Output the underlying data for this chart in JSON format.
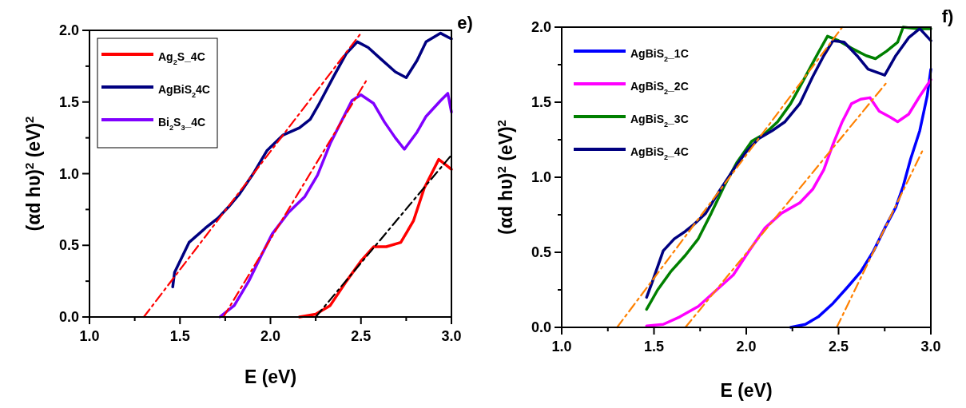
{
  "chart_data": [
    {
      "type": "line",
      "title": "e)",
      "xlabel": "E (eV)",
      "ylabel": "(αd hυ)$^{2}$ (eV)$^{2}$",
      "legend": "top left",
      "grid": false,
      "marker": "none",
      "xlim": [
        1,
        3
      ],
      "ylim": [
        0,
        2
      ],
      "xticks": [
        {
          "value": 1,
          "label": "1.0"
        },
        {
          "value": 1.25,
          "label": null
        },
        {
          "value": 1.5,
          "label": "1.5"
        },
        {
          "value": 1.75,
          "label": null
        },
        {
          "value": 2,
          "label": "2.0"
        },
        {
          "value": 2.25,
          "label": null
        },
        {
          "value": 2.5,
          "label": "2.5"
        },
        {
          "value": 2.75,
          "label": null
        },
        {
          "value": 3,
          "label": "3.0"
        }
      ],
      "yticks": [
        {
          "value": 0,
          "label": "0.0"
        },
        {
          "value": 0.25,
          "label": null
        },
        {
          "value": 0.5,
          "label": "0.5"
        },
        {
          "value": 0.75,
          "label": null
        },
        {
          "value": 1,
          "label": "1.0"
        },
        {
          "value": 1.25,
          "label": null
        },
        {
          "value": 1.5,
          "label": "1.5"
        },
        {
          "value": 1.75,
          "label": null
        },
        {
          "value": 2,
          "label": "2.0"
        }
      ],
      "series": [
        {
          "name": "Ag$_{2}$S_4C",
          "color": "#ff0000",
          "x": [
            2.16,
            2.25,
            2.33,
            2.42,
            2.5,
            2.57,
            2.64,
            2.72,
            2.79,
            2.85,
            2.93,
            2.97,
            3.0
          ],
          "values": [
            0,
            0.02,
            0.08,
            0.25,
            0.39,
            0.49,
            0.49,
            0.52,
            0.67,
            0.9,
            1.1,
            1.06,
            1.03
          ]
        },
        {
          "name": "AgBiS$_{2}$4C",
          "color": "#000080",
          "x": [
            1.46,
            1.47,
            1.55,
            1.64,
            1.71,
            1.77,
            1.83,
            1.91,
            1.98,
            2.07,
            2.16,
            2.22,
            2.27,
            2.35,
            2.42,
            2.48,
            2.54,
            2.61,
            2.69,
            2.75,
            2.81,
            2.86,
            2.94,
            3.0
          ],
          "values": [
            0.21,
            0.31,
            0.52,
            0.62,
            0.69,
            0.77,
            0.86,
            1.01,
            1.16,
            1.27,
            1.32,
            1.38,
            1.49,
            1.68,
            1.84,
            1.92,
            1.88,
            1.8,
            1.71,
            1.67,
            1.79,
            1.92,
            1.98,
            1.94
          ]
        },
        {
          "name": "Bi$_{2}$S$_{3}$_4C",
          "color": "#8000ff",
          "x": [
            1.72,
            1.8,
            1.88,
            1.95,
            2.01,
            2.1,
            2.19,
            2.26,
            2.33,
            2.39,
            2.45,
            2.5,
            2.57,
            2.63,
            2.69,
            2.74,
            2.81,
            2.86,
            2.94,
            2.98,
            3.0
          ],
          "values": [
            0,
            0.08,
            0.25,
            0.43,
            0.58,
            0.73,
            0.84,
            0.99,
            1.21,
            1.36,
            1.51,
            1.55,
            1.49,
            1.36,
            1.25,
            1.17,
            1.29,
            1.4,
            1.51,
            1.56,
            1.43
          ]
        },
        {
          "color": "#ff0000",
          "line_style": "dashed",
          "x": [
            1.3,
            2.5
          ],
          "values": [
            0,
            1.98
          ]
        },
        {
          "color": "#ff0000",
          "line_style": "dashed",
          "x": [
            1.74,
            2.53
          ],
          "values": [
            0,
            1.65
          ]
        },
        {
          "color": "#000000",
          "line_style": "dashed",
          "x": [
            2.25,
            3.0
          ],
          "values": [
            0,
            1.13
          ]
        }
      ]
    },
    {
      "type": "line",
      "title": "f)",
      "xlabel": "E (eV)",
      "ylabel": "(αd hυ)$^{2}$ (eV)$^{2}$",
      "legend": "top left",
      "grid": false,
      "marker": "none",
      "xlim": [
        1,
        3
      ],
      "ylim": [
        0,
        2
      ],
      "xticks": [
        {
          "value": 1,
          "label": "1.0"
        },
        {
          "value": 1.25,
          "label": null
        },
        {
          "value": 1.5,
          "label": "1.5"
        },
        {
          "value": 1.75,
          "label": null
        },
        {
          "value": 2,
          "label": "2.0"
        },
        {
          "value": 2.25,
          "label": null
        },
        {
          "value": 2.5,
          "label": "2.5"
        },
        {
          "value": 2.75,
          "label": null
        },
        {
          "value": 3,
          "label": "3.0"
        }
      ],
      "yticks": [
        {
          "value": 0,
          "label": "0.0"
        },
        {
          "value": 0.25,
          "label": null
        },
        {
          "value": 0.5,
          "label": "0.5"
        },
        {
          "value": 0.75,
          "label": null
        },
        {
          "value": 1,
          "label": "1.0"
        },
        {
          "value": 1.25,
          "label": null
        },
        {
          "value": 1.5,
          "label": "1.5"
        },
        {
          "value": 1.75,
          "label": null
        },
        {
          "value": 2,
          "label": "2.0"
        }
      ],
      "series": [
        {
          "name": "AgBiS$_{2}$_1C",
          "color": "#0000ff",
          "x": [
            2.24,
            2.32,
            2.39,
            2.47,
            2.55,
            2.62,
            2.69,
            2.75,
            2.81,
            2.85,
            2.89,
            2.94,
            2.98,
            3.0
          ],
          "values": [
            0,
            0.02,
            0.07,
            0.16,
            0.27,
            0.37,
            0.51,
            0.66,
            0.8,
            0.94,
            1.12,
            1.31,
            1.54,
            1.72
          ]
        },
        {
          "name": "AgBiS$_{2}$_2C",
          "color": "#ff00ff",
          "x": [
            1.46,
            1.55,
            1.64,
            1.74,
            1.84,
            1.93,
            2.01,
            2.1,
            2.19,
            2.29,
            2.36,
            2.42,
            2.47,
            2.52,
            2.57,
            2.62,
            2.67,
            2.72,
            2.78,
            2.82,
            2.88,
            2.94,
            3.0
          ],
          "values": [
            0.01,
            0.02,
            0.07,
            0.14,
            0.25,
            0.35,
            0.5,
            0.66,
            0.76,
            0.83,
            0.92,
            1.05,
            1.22,
            1.37,
            1.49,
            1.52,
            1.53,
            1.44,
            1.4,
            1.37,
            1.42,
            1.54,
            1.65
          ]
        },
        {
          "name": "AgBiS$_{2}$_3C",
          "color": "#008000",
          "x": [
            1.46,
            1.52,
            1.59,
            1.67,
            1.74,
            1.81,
            1.88,
            1.95,
            2.03,
            2.1,
            2.17,
            2.24,
            2.32,
            2.39,
            2.44,
            2.5,
            2.57,
            2.65,
            2.7,
            2.76,
            2.82,
            2.85,
            2.92,
            3.0
          ],
          "values": [
            0.12,
            0.25,
            0.37,
            0.48,
            0.59,
            0.76,
            0.94,
            1.1,
            1.24,
            1.29,
            1.37,
            1.49,
            1.67,
            1.83,
            1.94,
            1.91,
            1.86,
            1.81,
            1.79,
            1.84,
            1.9,
            2.0,
            1.99,
            1.99
          ]
        },
        {
          "name": "AgBiS$_{2}$_4C",
          "color": "#000080",
          "x": [
            1.46,
            1.49,
            1.55,
            1.61,
            1.67,
            1.72,
            1.78,
            1.85,
            1.93,
            2.0,
            2.07,
            2.14,
            2.21,
            2.29,
            2.36,
            2.42,
            2.47,
            2.53,
            2.6,
            2.66,
            2.75,
            2.81,
            2.88,
            2.94,
            3.0
          ],
          "values": [
            0.2,
            0.3,
            0.51,
            0.59,
            0.64,
            0.69,
            0.76,
            0.9,
            1.05,
            1.17,
            1.26,
            1.31,
            1.37,
            1.49,
            1.67,
            1.81,
            1.91,
            1.9,
            1.81,
            1.72,
            1.68,
            1.81,
            1.93,
            1.99,
            1.91
          ]
        },
        {
          "color": "#ff8000",
          "line_style": "dashed",
          "x": [
            1.3,
            2.52
          ],
          "values": [
            0,
            2.0
          ]
        },
        {
          "color": "#ff8000",
          "line_style": "dashed",
          "x": [
            1.67,
            2.76
          ],
          "values": [
            0,
            1.63
          ]
        },
        {
          "color": "#ff8000",
          "line_style": "dashed",
          "x": [
            2.49,
            2.96
          ],
          "values": [
            0,
            1.19
          ]
        }
      ]
    }
  ]
}
